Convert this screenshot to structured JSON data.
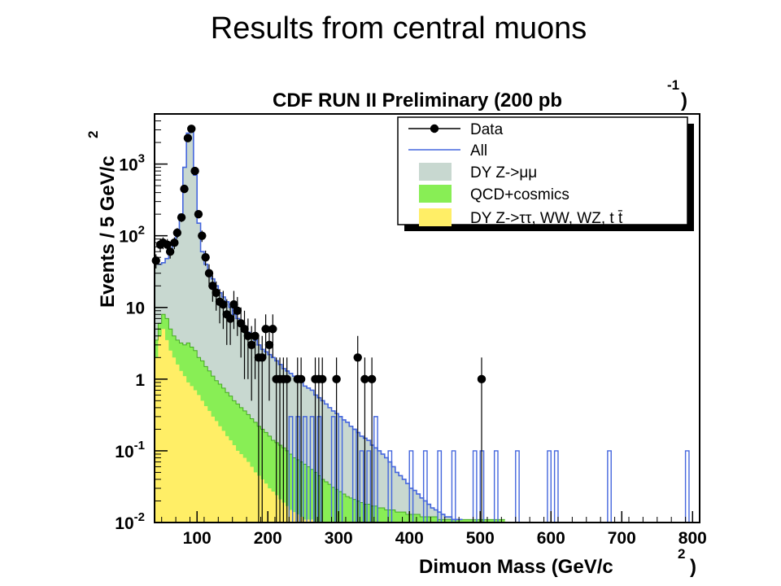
{
  "slide_title": "Results from central muons",
  "chart_data": {
    "type": "histogram",
    "title": "CDF RUN II Preliminary (200 pb",
    "title_superscript": "-1",
    "title_suffix": ")",
    "xlabel": "Dimuon Mass (GeV/c",
    "xlabel_superscript": "2",
    "xlabel_suffix": ")",
    "ylabel": "Events / 5 GeV/c",
    "ylabel_superscript": "2",
    "xlim": [
      40,
      810
    ],
    "ylim": [
      0.01,
      5000
    ],
    "log_y": true,
    "bin_width": 5,
    "x_ticks": [
      100,
      200,
      300,
      400,
      500,
      600,
      700,
      800
    ],
    "y_ticks": [
      {
        "value": 0.01,
        "base": "10",
        "exp": "-2"
      },
      {
        "value": 0.1,
        "base": "10",
        "exp": "-1"
      },
      {
        "value": 1,
        "base": "1",
        "exp": ""
      },
      {
        "value": 10,
        "base": "10",
        "exp": ""
      },
      {
        "value": 100,
        "base": "10",
        "exp": "2"
      },
      {
        "value": 1000,
        "base": "10",
        "exp": "3"
      }
    ],
    "legend_position": "top-right",
    "legend": [
      {
        "key": "data",
        "label": "Data"
      },
      {
        "key": "all",
        "label": "All"
      },
      {
        "key": "dy",
        "label": "DY Z->μμ"
      },
      {
        "key": "qcd",
        "label": "QCD+cosmics"
      },
      {
        "key": "other",
        "label": "DY Z->ττ, WW, WZ, t t̄"
      }
    ],
    "colors": {
      "dy": "#c8d8d0",
      "qcd": "#88ee55",
      "other": "#ffee66",
      "all_line": "#4466dd",
      "data": "#000000"
    },
    "series": [
      {
        "key": "all",
        "bins": [
          [
            40,
            45
          ],
          [
            45,
            40
          ],
          [
            50,
            42
          ],
          [
            55,
            48
          ],
          [
            60,
            60
          ],
          [
            65,
            75
          ],
          [
            70,
            110
          ],
          [
            75,
            200
          ],
          [
            80,
            900
          ],
          [
            85,
            2700
          ],
          [
            90,
            3200
          ],
          [
            95,
            700
          ],
          [
            100,
            150
          ],
          [
            105,
            60
          ],
          [
            110,
            40
          ],
          [
            115,
            30
          ],
          [
            120,
            25
          ],
          [
            125,
            20
          ],
          [
            130,
            16
          ],
          [
            135,
            14
          ],
          [
            140,
            12
          ],
          [
            145,
            10
          ],
          [
            150,
            8
          ],
          [
            155,
            7
          ],
          [
            160,
            6
          ],
          [
            165,
            5
          ],
          [
            170,
            4.5
          ],
          [
            175,
            4
          ],
          [
            180,
            3.5
          ],
          [
            185,
            3
          ],
          [
            190,
            2.6
          ],
          [
            195,
            2.4
          ],
          [
            200,
            2.2
          ],
          [
            205,
            2
          ],
          [
            210,
            1.8
          ],
          [
            215,
            1.6
          ],
          [
            220,
            1.4
          ],
          [
            225,
            1.3
          ],
          [
            230,
            1.2
          ],
          [
            235,
            1.1
          ],
          [
            240,
            1
          ],
          [
            245,
            0.9
          ],
          [
            250,
            0.8
          ],
          [
            255,
            0.75
          ],
          [
            260,
            0.7
          ],
          [
            265,
            0.6
          ],
          [
            270,
            0.55
          ],
          [
            275,
            0.5
          ],
          [
            280,
            0.45
          ],
          [
            285,
            0.4
          ],
          [
            290,
            0.36
          ],
          [
            295,
            0.33
          ],
          [
            300,
            0.3
          ],
          [
            305,
            0.27
          ],
          [
            310,
            0.25
          ],
          [
            315,
            0.22
          ],
          [
            320,
            0.2
          ],
          [
            325,
            0.18
          ],
          [
            330,
            0.16
          ],
          [
            335,
            0.15
          ],
          [
            340,
            0.14
          ],
          [
            345,
            0.12
          ],
          [
            350,
            0.11
          ],
          [
            355,
            0.1
          ],
          [
            360,
            0.09
          ],
          [
            365,
            0.08
          ],
          [
            370,
            0.07
          ],
          [
            375,
            0.06
          ],
          [
            380,
            0.05
          ],
          [
            385,
            0.045
          ],
          [
            390,
            0.04
          ],
          [
            395,
            0.035
          ],
          [
            400,
            0.03
          ],
          [
            405,
            0.028
          ],
          [
            410,
            0.025
          ],
          [
            415,
            0.022
          ],
          [
            420,
            0.02
          ],
          [
            425,
            0.018
          ],
          [
            430,
            0.016
          ],
          [
            435,
            0.015
          ],
          [
            440,
            0.014
          ],
          [
            445,
            0.013
          ],
          [
            450,
            0.012
          ],
          [
            455,
            0.012
          ],
          [
            460,
            0.011
          ],
          [
            465,
            0.011
          ],
          [
            470,
            0.011
          ]
        ],
        "spikes": [
          [
            230,
            0.3
          ],
          [
            240,
            0.3
          ],
          [
            250,
            0.3
          ],
          [
            260,
            0.3
          ],
          [
            270,
            0.3
          ],
          [
            290,
            0.3
          ],
          [
            300,
            0.3
          ],
          [
            320,
            0.2
          ],
          [
            330,
            0.1
          ],
          [
            340,
            0.1
          ],
          [
            350,
            0.3
          ],
          [
            370,
            0.1
          ],
          [
            400,
            0.1
          ],
          [
            420,
            0.1
          ],
          [
            440,
            0.1
          ],
          [
            460,
            0.1
          ],
          [
            490,
            0.1
          ],
          [
            500,
            0.1
          ],
          [
            520,
            0.1
          ],
          [
            550,
            0.1
          ],
          [
            595,
            0.1
          ],
          [
            605,
            0.1
          ],
          [
            680,
            0.1
          ],
          [
            790,
            0.1
          ]
        ]
      },
      {
        "key": "qcd",
        "bins": [
          [
            40,
            3.5
          ],
          [
            45,
            6
          ],
          [
            50,
            8
          ],
          [
            55,
            7
          ],
          [
            60,
            5
          ],
          [
            65,
            4
          ],
          [
            70,
            3.5
          ],
          [
            75,
            3.2
          ],
          [
            80,
            3
          ],
          [
            85,
            3.2
          ],
          [
            90,
            2.8
          ],
          [
            95,
            2.5
          ],
          [
            100,
            2
          ],
          [
            105,
            1.8
          ],
          [
            110,
            1.5
          ],
          [
            115,
            1.3
          ],
          [
            120,
            1.1
          ],
          [
            125,
            0.95
          ],
          [
            130,
            0.85
          ],
          [
            135,
            0.75
          ],
          [
            140,
            0.65
          ],
          [
            145,
            0.58
          ],
          [
            150,
            0.5
          ],
          [
            155,
            0.45
          ],
          [
            160,
            0.4
          ],
          [
            165,
            0.36
          ],
          [
            170,
            0.32
          ],
          [
            175,
            0.28
          ],
          [
            180,
            0.25
          ],
          [
            185,
            0.22
          ],
          [
            190,
            0.2
          ],
          [
            195,
            0.18
          ],
          [
            200,
            0.16
          ],
          [
            205,
            0.14
          ],
          [
            210,
            0.13
          ],
          [
            215,
            0.12
          ],
          [
            220,
            0.11
          ],
          [
            225,
            0.1
          ],
          [
            230,
            0.09
          ],
          [
            235,
            0.08
          ],
          [
            240,
            0.075
          ],
          [
            245,
            0.07
          ],
          [
            250,
            0.065
          ],
          [
            255,
            0.06
          ],
          [
            260,
            0.055
          ],
          [
            265,
            0.05
          ],
          [
            270,
            0.045
          ],
          [
            275,
            0.04
          ],
          [
            280,
            0.037
          ],
          [
            285,
            0.034
          ],
          [
            290,
            0.031
          ],
          [
            295,
            0.029
          ],
          [
            300,
            0.027
          ],
          [
            305,
            0.025
          ],
          [
            310,
            0.023
          ],
          [
            315,
            0.022
          ],
          [
            320,
            0.021
          ],
          [
            325,
            0.02
          ],
          [
            330,
            0.019
          ],
          [
            335,
            0.018
          ],
          [
            340,
            0.018
          ],
          [
            345,
            0.017
          ],
          [
            350,
            0.017
          ],
          [
            355,
            0.016
          ],
          [
            360,
            0.016
          ],
          [
            365,
            0.015
          ],
          [
            370,
            0.015
          ],
          [
            375,
            0.015
          ],
          [
            380,
            0.014
          ],
          [
            385,
            0.014
          ],
          [
            390,
            0.014
          ],
          [
            395,
            0.013
          ],
          [
            400,
            0.013
          ],
          [
            405,
            0.013
          ],
          [
            410,
            0.013
          ],
          [
            415,
            0.012
          ],
          [
            420,
            0.012
          ],
          [
            425,
            0.012
          ],
          [
            430,
            0.012
          ],
          [
            435,
            0.012
          ],
          [
            440,
            0.011
          ],
          [
            445,
            0.011
          ],
          [
            450,
            0.011
          ],
          [
            455,
            0.011
          ],
          [
            460,
            0.011
          ],
          [
            465,
            0.011
          ],
          [
            470,
            0.011
          ],
          [
            475,
            0.011
          ],
          [
            480,
            0.011
          ],
          [
            485,
            0.011
          ],
          [
            490,
            0.011
          ],
          [
            495,
            0.011
          ],
          [
            500,
            0.011
          ],
          [
            505,
            0.011
          ],
          [
            510,
            0.011
          ],
          [
            515,
            0.011
          ],
          [
            520,
            0.011
          ],
          [
            525,
            0.011
          ],
          [
            530,
            0.011
          ]
        ]
      },
      {
        "key": "other",
        "bins": [
          [
            40,
            2
          ],
          [
            45,
            4
          ],
          [
            50,
            5
          ],
          [
            55,
            3.5
          ],
          [
            60,
            2.5
          ],
          [
            65,
            2
          ],
          [
            70,
            1.6
          ],
          [
            75,
            1.3
          ],
          [
            80,
            1.1
          ],
          [
            85,
            0.9
          ],
          [
            90,
            0.8
          ],
          [
            95,
            0.7
          ],
          [
            100,
            0.6
          ],
          [
            105,
            0.5
          ],
          [
            110,
            0.42
          ],
          [
            115,
            0.36
          ],
          [
            120,
            0.3
          ],
          [
            125,
            0.26
          ],
          [
            130,
            0.22
          ],
          [
            135,
            0.19
          ],
          [
            140,
            0.16
          ],
          [
            145,
            0.14
          ],
          [
            150,
            0.12
          ],
          [
            155,
            0.1
          ],
          [
            160,
            0.09
          ],
          [
            165,
            0.08
          ],
          [
            170,
            0.07
          ],
          [
            175,
            0.06
          ],
          [
            180,
            0.05
          ],
          [
            185,
            0.045
          ],
          [
            190,
            0.04
          ],
          [
            195,
            0.035
          ],
          [
            200,
            0.03
          ],
          [
            205,
            0.027
          ],
          [
            210,
            0.024
          ],
          [
            215,
            0.021
          ],
          [
            220,
            0.019
          ],
          [
            225,
            0.017
          ],
          [
            230,
            0.015
          ],
          [
            235,
            0.014
          ],
          [
            240,
            0.013
          ],
          [
            245,
            0.012
          ],
          [
            250,
            0.011
          ],
          [
            255,
            0.011
          ],
          [
            260,
            0.011
          ]
        ]
      }
    ],
    "data_points": [
      [
        42,
        45,
        10
      ],
      [
        48,
        75,
        15
      ],
      [
        52,
        80,
        15
      ],
      [
        58,
        75,
        15
      ],
      [
        62,
        60,
        12
      ],
      [
        68,
        80,
        15
      ],
      [
        72,
        110,
        18
      ],
      [
        78,
        180,
        25
      ],
      [
        82,
        450,
        40
      ],
      [
        87,
        2300,
        100
      ],
      [
        92,
        3100,
        110
      ],
      [
        97,
        800,
        50
      ],
      [
        102,
        200,
        25
      ],
      [
        107,
        100,
        18
      ],
      [
        112,
        50,
        12
      ],
      [
        117,
        30,
        10
      ],
      [
        122,
        20,
        8
      ],
      [
        127,
        16,
        7
      ],
      [
        132,
        12,
        6
      ],
      [
        137,
        11,
        6
      ],
      [
        142,
        8,
        5
      ],
      [
        147,
        7,
        4
      ],
      [
        152,
        11,
        6
      ],
      [
        157,
        9,
        5
      ],
      [
        162,
        6,
        4
      ],
      [
        167,
        5,
        4
      ],
      [
        172,
        4,
        3
      ],
      [
        177,
        3,
        2.5
      ],
      [
        182,
        4,
        3
      ],
      [
        187,
        2,
        2
      ],
      [
        192,
        2,
        2
      ],
      [
        197,
        5,
        3
      ],
      [
        202,
        3,
        2.5
      ],
      [
        207,
        5,
        3
      ],
      [
        212,
        1,
        1
      ],
      [
        217,
        1,
        1
      ],
      [
        222,
        1,
        1
      ],
      [
        227,
        1,
        1
      ],
      [
        242,
        1,
        1
      ],
      [
        247,
        1,
        1
      ],
      [
        267,
        1,
        1
      ],
      [
        272,
        1,
        1
      ],
      [
        277,
        1,
        1
      ],
      [
        297,
        1,
        1
      ],
      [
        327,
        2,
        2
      ],
      [
        337,
        1,
        1
      ],
      [
        347,
        1,
        1
      ],
      [
        502,
        1,
        1
      ]
    ]
  }
}
